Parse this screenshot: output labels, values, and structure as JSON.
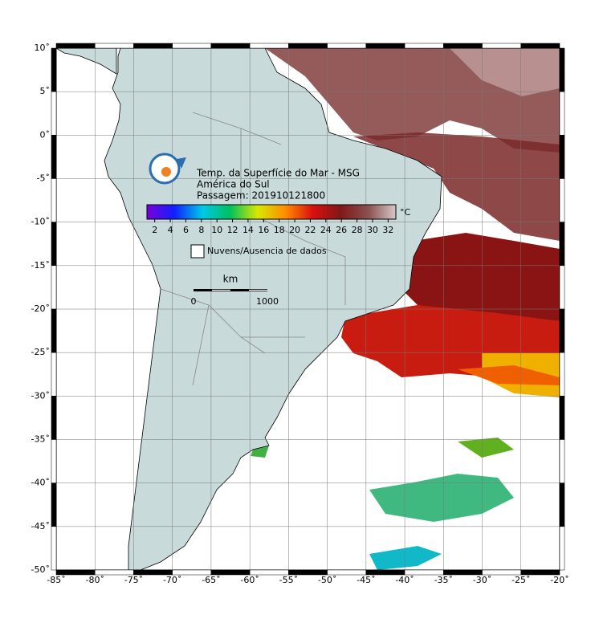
{
  "map": {
    "lon_range": [
      -85,
      -20
    ],
    "lat_range": [
      -50,
      10
    ],
    "lon_ticks": [
      {
        "value": -85,
        "label": "-85˚"
      },
      {
        "value": -80,
        "label": "-80˚"
      },
      {
        "value": -75,
        "label": "-75˚"
      },
      {
        "value": -70,
        "label": "-70˚"
      },
      {
        "value": -65,
        "label": "-65˚"
      },
      {
        "value": -60,
        "label": "-60˚"
      },
      {
        "value": -55,
        "label": "-55˚"
      },
      {
        "value": -50,
        "label": "-50˚"
      },
      {
        "value": -45,
        "label": "-45˚"
      },
      {
        "value": -40,
        "label": "-40˚"
      },
      {
        "value": -35,
        "label": "-35˚"
      },
      {
        "value": -30,
        "label": "-30˚"
      },
      {
        "value": -25,
        "label": "-25˚"
      },
      {
        "value": -20,
        "label": "-20˚"
      }
    ],
    "lat_ticks": [
      {
        "value": 10,
        "label": "10˚"
      },
      {
        "value": 5,
        "label": "5˚"
      },
      {
        "value": 0,
        "label": "0˚"
      },
      {
        "value": -5,
        "label": "-5˚"
      },
      {
        "value": -10,
        "label": "-10˚"
      },
      {
        "value": -15,
        "label": "-15˚"
      },
      {
        "value": -20,
        "label": "-20˚"
      },
      {
        "value": -25,
        "label": "-25˚"
      },
      {
        "value": -30,
        "label": "-30˚"
      },
      {
        "value": -35,
        "label": "-35˚"
      },
      {
        "value": -40,
        "label": "-40˚"
      },
      {
        "value": -45,
        "label": "-45˚"
      },
      {
        "value": -50,
        "label": "-50˚"
      }
    ]
  },
  "legend": {
    "title_lines": [
      "Temp. da Superfície do Mar - MSG",
      "América do Sul",
      "Passagem: 201910121800"
    ],
    "colorbar": {
      "range": [
        1,
        33
      ],
      "ticks": [
        2,
        4,
        6,
        8,
        10,
        12,
        14,
        16,
        18,
        20,
        22,
        24,
        26,
        28,
        30,
        32
      ],
      "unit": "°C",
      "colors": [
        "#7a00d8",
        "#1020ff",
        "#00c8e8",
        "#00c060",
        "#d8e800",
        "#ff8c00",
        "#d81010",
        "#801818",
        "#8a5050",
        "#d8c8c8"
      ]
    },
    "cloud_label": "Nuvens/Ausencia de dados",
    "scale_bar": {
      "unit": "km",
      "labels": [
        "0",
        "1000"
      ]
    }
  }
}
